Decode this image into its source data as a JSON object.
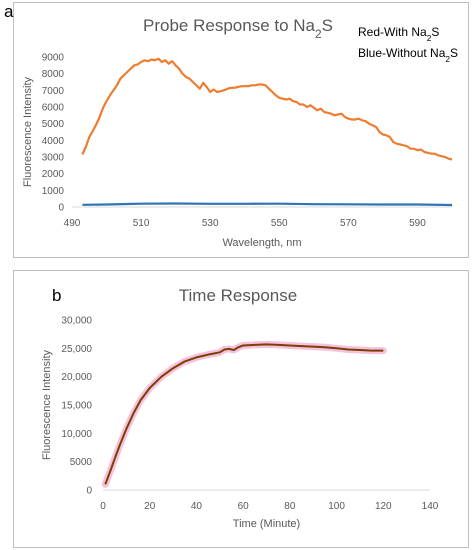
{
  "panel_a_letter": "a",
  "panel_b_letter": "b",
  "chart_data": [
    {
      "type": "line",
      "title": "Probe Response to Na2S",
      "title_parts": {
        "base": "Probe Response to Na",
        "sub": "2",
        "tail": "S"
      },
      "xlabel": "Wavelength, nm",
      "ylabel": "Fluorescence Intensity",
      "xlim": [
        490,
        600
      ],
      "ylim": [
        0,
        9000
      ],
      "xticks": [
        490,
        510,
        530,
        550,
        570,
        590
      ],
      "yticks": [
        0,
        1000,
        2000,
        3000,
        4000,
        5000,
        6000,
        7000,
        8000,
        9000
      ],
      "grid": false,
      "legend_lines": [
        {
          "base": "Red-With Na",
          "sub": "2",
          "tail": "S"
        },
        {
          "base": "Blue-Without Na",
          "sub": "2",
          "tail": "S"
        }
      ],
      "series": [
        {
          "color": "#ED7D31",
          "x": [
            493,
            494,
            495,
            496,
            497,
            498,
            499,
            500,
            501,
            502,
            503,
            504,
            505,
            506,
            507,
            508,
            509,
            510,
            511,
            512,
            513,
            514,
            515,
            516,
            517,
            518,
            519,
            520,
            521,
            522,
            523,
            524,
            525,
            526,
            527,
            528,
            529,
            530,
            531,
            532,
            533,
            534,
            535,
            536,
            537,
            538,
            539,
            540,
            541,
            542,
            543,
            544,
            545,
            546,
            547,
            548,
            549,
            550,
            551,
            552,
            553,
            554,
            555,
            556,
            557,
            558,
            559,
            560,
            561,
            562,
            563,
            564,
            565,
            566,
            567,
            568,
            569,
            570,
            571,
            572,
            573,
            574,
            575,
            576,
            577,
            578,
            579,
            580,
            581,
            582,
            583,
            584,
            585,
            586,
            587,
            588,
            589,
            590,
            591,
            592,
            593,
            594,
            595,
            596,
            597,
            598,
            599,
            600
          ],
          "y": [
            3150,
            3600,
            4200,
            4550,
            4950,
            5400,
            5950,
            6350,
            6700,
            7000,
            7300,
            7700,
            7900,
            8100,
            8300,
            8500,
            8550,
            8700,
            8800,
            8750,
            8850,
            8800,
            8900,
            8700,
            8800,
            8600,
            8750,
            8500,
            8300,
            8000,
            7800,
            7700,
            7500,
            7300,
            7100,
            7450,
            7200,
            6900,
            7050,
            6900,
            6950,
            7000,
            7100,
            7150,
            7150,
            7200,
            7250,
            7250,
            7250,
            7300,
            7300,
            7350,
            7350,
            7300,
            7100,
            6900,
            6700,
            6550,
            6500,
            6450,
            6500,
            6350,
            6300,
            6150,
            6150,
            6000,
            6100,
            5950,
            5800,
            5900,
            5700,
            5650,
            5600,
            5500,
            5550,
            5600,
            5400,
            5300,
            5250,
            5250,
            5300,
            5200,
            5150,
            5000,
            4900,
            4800,
            4500,
            4350,
            4300,
            4200,
            3900,
            3800,
            3750,
            3700,
            3650,
            3500,
            3500,
            3400,
            3450,
            3300,
            3250,
            3200,
            3200,
            3100,
            3050,
            3000,
            2900,
            2850
          ]
        },
        {
          "color": "#2E75B6",
          "x": [
            493,
            500,
            510,
            520,
            530,
            540,
            550,
            560,
            570,
            580,
            590,
            600
          ],
          "y": [
            130,
            150,
            200,
            210,
            190,
            190,
            200,
            170,
            160,
            150,
            150,
            120
          ]
        }
      ]
    },
    {
      "type": "line",
      "title": "Time Response",
      "xlabel": "Time (Minute)",
      "ylabel": "Fluorescence Intensity",
      "xlim": [
        0,
        140
      ],
      "ylim": [
        0,
        30000
      ],
      "xticks": [
        0,
        20,
        40,
        60,
        80,
        100,
        120,
        140
      ],
      "yticks": [
        "0",
        "5000",
        "10,000",
        "15,000",
        "20,000",
        "25,000",
        "30,000"
      ],
      "ytick_values": [
        0,
        5000,
        10000,
        15000,
        20000,
        25000,
        30000
      ],
      "grid": false,
      "series": [
        {
          "color": "#7B3F00",
          "error_color": "#F4B6D9",
          "x": [
            1,
            3,
            5,
            7,
            10,
            13,
            16,
            20,
            25,
            30,
            35,
            40,
            45,
            50,
            52,
            54,
            56,
            58,
            60,
            65,
            70,
            75,
            80,
            85,
            90,
            95,
            100,
            105,
            110,
            115,
            120
          ],
          "y": [
            1000,
            3200,
            5500,
            7700,
            10800,
            13500,
            15800,
            18000,
            20000,
            21500,
            22700,
            23400,
            23900,
            24300,
            24800,
            24900,
            24700,
            25200,
            25500,
            25600,
            25700,
            25600,
            25500,
            25400,
            25300,
            25200,
            25000,
            24800,
            24700,
            24600,
            24600
          ]
        }
      ]
    }
  ]
}
